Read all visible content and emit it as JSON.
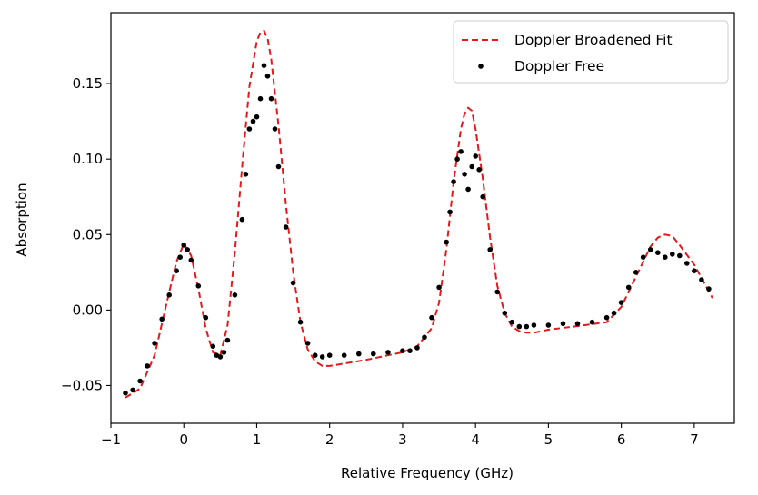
{
  "chart_data": {
    "type": "scatter",
    "title": "",
    "xlabel": "Relative Frequency (GHz)",
    "ylabel": "Absorption",
    "xlim": [
      -1.0,
      7.55
    ],
    "ylim": [
      -0.075,
      0.197
    ],
    "xticks": [
      -1,
      0,
      1,
      2,
      3,
      4,
      5,
      6,
      7
    ],
    "xtick_labels": [
      "−1",
      "0",
      "1",
      "2",
      "3",
      "4",
      "5",
      "6",
      "7"
    ],
    "yticks": [
      -0.05,
      0.0,
      0.05,
      0.1,
      0.15
    ],
    "ytick_labels": [
      "−0.05",
      "0.00",
      "0.05",
      "0.10",
      "0.15"
    ],
    "grid": false,
    "legend_position": "top-right",
    "series": [
      {
        "name": "Doppler Broadened Fit",
        "kind": "line",
        "style": "dashed",
        "color": "#e31a1c",
        "x": [
          -0.8,
          -0.6,
          -0.4,
          -0.2,
          -0.1,
          0.0,
          0.1,
          0.2,
          0.3,
          0.4,
          0.5,
          0.6,
          0.7,
          0.8,
          0.9,
          1.0,
          1.05,
          1.1,
          1.15,
          1.2,
          1.3,
          1.4,
          1.5,
          1.6,
          1.7,
          1.8,
          1.9,
          2.0,
          2.5,
          3.0,
          3.2,
          3.4,
          3.5,
          3.6,
          3.7,
          3.8,
          3.85,
          3.9,
          3.95,
          4.0,
          4.1,
          4.2,
          4.3,
          4.4,
          4.5,
          4.6,
          4.7,
          4.8,
          5.0,
          5.5,
          5.8,
          6.0,
          6.2,
          6.4,
          6.5,
          6.6,
          6.7,
          6.8,
          7.0,
          7.25
        ],
        "y": [
          -0.058,
          -0.052,
          -0.03,
          0.012,
          0.032,
          0.044,
          0.036,
          0.014,
          -0.012,
          -0.028,
          -0.03,
          -0.01,
          0.038,
          0.095,
          0.148,
          0.178,
          0.184,
          0.185,
          0.18,
          0.166,
          0.122,
          0.07,
          0.025,
          -0.008,
          -0.026,
          -0.034,
          -0.037,
          -0.037,
          -0.033,
          -0.028,
          -0.024,
          -0.012,
          0.005,
          0.04,
          0.085,
          0.12,
          0.13,
          0.134,
          0.132,
          0.12,
          0.087,
          0.048,
          0.016,
          -0.002,
          -0.011,
          -0.014,
          -0.015,
          -0.015,
          -0.013,
          -0.01,
          -0.008,
          0.002,
          0.022,
          0.042,
          0.048,
          0.05,
          0.049,
          0.043,
          0.03,
          0.008
        ]
      },
      {
        "name": "Doppler Free",
        "kind": "scatter",
        "color": "#000000",
        "x": [
          -0.8,
          -0.7,
          -0.6,
          -0.5,
          -0.4,
          -0.3,
          -0.2,
          -0.1,
          -0.05,
          0.0,
          0.05,
          0.1,
          0.2,
          0.3,
          0.4,
          0.45,
          0.5,
          0.55,
          0.6,
          0.7,
          0.8,
          0.85,
          0.9,
          0.95,
          1.0,
          1.05,
          1.1,
          1.15,
          1.2,
          1.25,
          1.3,
          1.4,
          1.5,
          1.6,
          1.7,
          1.8,
          1.9,
          2.0,
          2.2,
          2.4,
          2.6,
          2.8,
          3.0,
          3.1,
          3.2,
          3.3,
          3.4,
          3.5,
          3.6,
          3.65,
          3.7,
          3.75,
          3.8,
          3.85,
          3.9,
          3.95,
          4.0,
          4.05,
          4.1,
          4.2,
          4.3,
          4.4,
          4.5,
          4.6,
          4.7,
          4.8,
          5.0,
          5.2,
          5.4,
          5.6,
          5.8,
          5.9,
          6.0,
          6.1,
          6.2,
          6.3,
          6.4,
          6.5,
          6.6,
          6.7,
          6.8,
          6.9,
          7.0,
          7.1,
          7.2
        ],
        "y": [
          -0.055,
          -0.053,
          -0.047,
          -0.037,
          -0.022,
          -0.006,
          0.01,
          0.026,
          0.035,
          0.043,
          0.04,
          0.033,
          0.016,
          -0.005,
          -0.024,
          -0.03,
          -0.031,
          -0.028,
          -0.02,
          0.01,
          0.06,
          0.09,
          0.12,
          0.125,
          0.128,
          0.14,
          0.162,
          0.155,
          0.14,
          0.12,
          0.095,
          0.055,
          0.018,
          -0.008,
          -0.022,
          -0.03,
          -0.031,
          -0.03,
          -0.03,
          -0.029,
          -0.029,
          -0.028,
          -0.027,
          -0.027,
          -0.025,
          -0.018,
          -0.005,
          0.015,
          0.045,
          0.065,
          0.085,
          0.1,
          0.105,
          0.09,
          0.08,
          0.095,
          0.102,
          0.093,
          0.075,
          0.04,
          0.012,
          -0.002,
          -0.008,
          -0.011,
          -0.011,
          -0.01,
          -0.01,
          -0.009,
          -0.009,
          -0.008,
          -0.005,
          -0.002,
          0.005,
          0.015,
          0.025,
          0.035,
          0.04,
          0.038,
          0.035,
          0.037,
          0.036,
          0.031,
          0.026,
          0.02,
          0.014
        ]
      }
    ]
  },
  "legend": {
    "items": [
      {
        "label": "Doppler Broadened Fit",
        "color": "#e31a1c"
      },
      {
        "label": "Doppler Free",
        "color": "#000000"
      }
    ]
  }
}
